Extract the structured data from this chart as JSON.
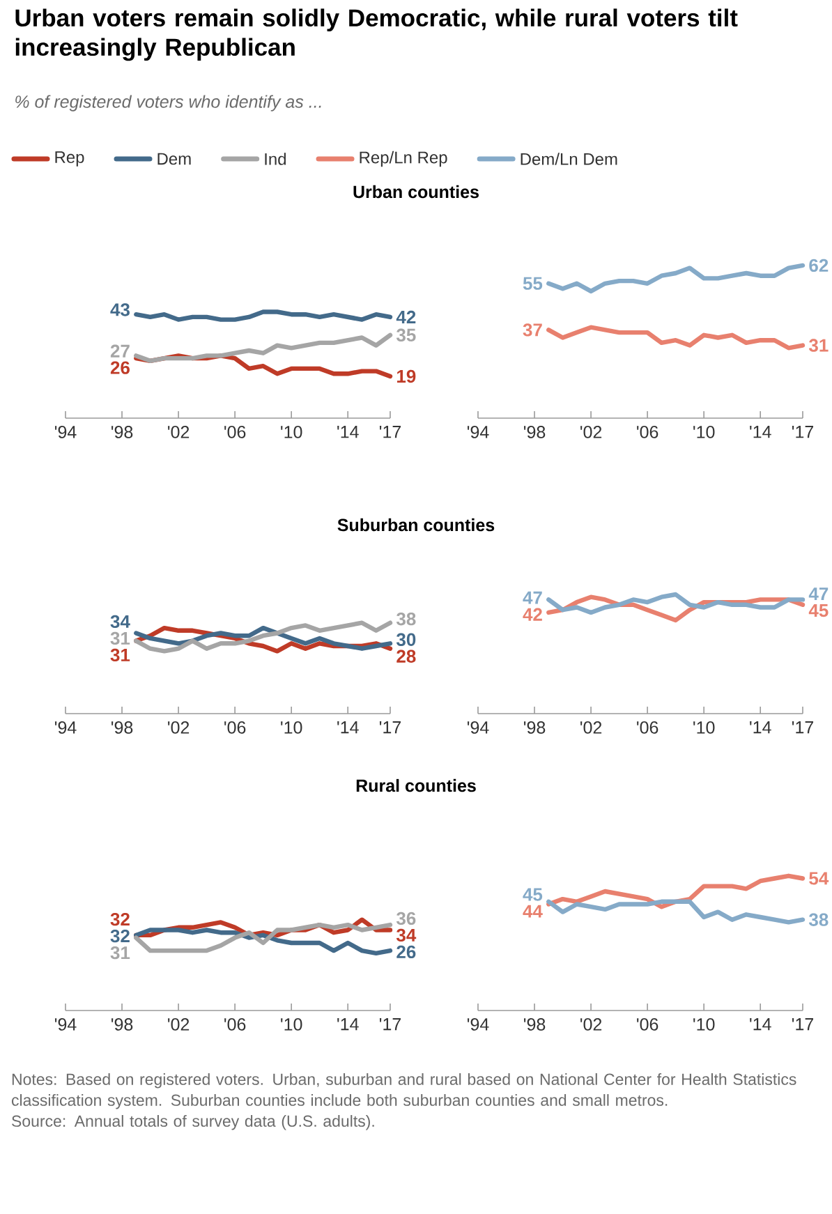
{
  "chart_data": [
    {
      "type": "other",
      "title": "Urban voters remain solidly Democratic, while rural voters tilt increasingly Republican",
      "subtitle": "% of registered voters who identify as ...",
      "annotations": [
        "Notes: Based on registered voters. Urban, suburban and rural based on National Center for Health Statistics classification system. Suburban counties include both suburban counties and small metros.",
        "Source: Annual totals of survey data (U.S. adults)."
      ]
    },
    {
      "type": "line",
      "title": "Urban counties",
      "legend": "top",
      "line_style": "solid",
      "tick_labels": "x",
      "x": [
        1999,
        2000,
        2001,
        2002,
        2003,
        2004,
        2005,
        2006,
        2007,
        2008,
        2009,
        2010,
        2011,
        2012,
        2013,
        2014,
        2015,
        2016,
        2017
      ],
      "xlim": [
        1994,
        2017
      ],
      "xticks": [
        {
          "value": 1994,
          "label": "'94"
        },
        {
          "value": 1998,
          "label": "'98"
        },
        {
          "value": 2002,
          "label": "'02"
        },
        {
          "value": 2006,
          "label": "'06"
        },
        {
          "value": 2010,
          "label": "'10"
        },
        {
          "value": 2014,
          "label": "'14"
        },
        {
          "value": 2017,
          "label": "'17"
        }
      ],
      "series": [
        {
          "name": "Rep",
          "color": "#bf3b27",
          "values": [
            26,
            25,
            26,
            27,
            26,
            26,
            27,
            26,
            22,
            23,
            20,
            22,
            22,
            22,
            20,
            20,
            21,
            21,
            19
          ],
          "value_labels": [
            "26",
            null,
            null,
            null,
            null,
            null,
            null,
            null,
            null,
            null,
            null,
            null,
            null,
            null,
            null,
            null,
            null,
            null,
            "19"
          ]
        },
        {
          "name": "Dem",
          "color": "#436a8a",
          "values": [
            43,
            42,
            43,
            41,
            42,
            42,
            41,
            41,
            42,
            44,
            44,
            43,
            43,
            42,
            43,
            42,
            41,
            43,
            42
          ],
          "value_labels": [
            "43",
            null,
            null,
            null,
            null,
            null,
            null,
            null,
            null,
            null,
            null,
            null,
            null,
            null,
            null,
            null,
            null,
            null,
            "42"
          ]
        },
        {
          "name": "Ind",
          "color": "#a5a5a5",
          "values": [
            27,
            25,
            26,
            26,
            26,
            27,
            27,
            28,
            29,
            28,
            31,
            30,
            31,
            32,
            32,
            33,
            34,
            31,
            35
          ],
          "value_labels": [
            "27",
            null,
            null,
            null,
            null,
            null,
            null,
            null,
            null,
            null,
            null,
            null,
            null,
            null,
            null,
            null,
            null,
            null,
            "35"
          ]
        }
      ]
    },
    {
      "type": "line",
      "legend": "top",
      "line_style": "solid",
      "tick_labels": "x",
      "x": [
        1999,
        2000,
        2001,
        2002,
        2003,
        2004,
        2005,
        2006,
        2007,
        2008,
        2009,
        2010,
        2011,
        2012,
        2013,
        2014,
        2015,
        2016,
        2017
      ],
      "xlim": [
        1994,
        2017
      ],
      "xticks": [
        {
          "value": 1994,
          "label": "'94"
        },
        {
          "value": 1998,
          "label": "'98"
        },
        {
          "value": 2002,
          "label": "'02"
        },
        {
          "value": 2006,
          "label": "'06"
        },
        {
          "value": 2010,
          "label": "'10"
        },
        {
          "value": 2014,
          "label": "'14"
        },
        {
          "value": 2017,
          "label": "'17"
        }
      ],
      "series": [
        {
          "name": "Rep/Ln Rep",
          "color": "#e8806e",
          "values": [
            37,
            34,
            36,
            38,
            37,
            36,
            36,
            36,
            32,
            33,
            31,
            35,
            34,
            35,
            32,
            33,
            33,
            30,
            31
          ],
          "value_labels": [
            "37",
            null,
            null,
            null,
            null,
            null,
            null,
            null,
            null,
            null,
            null,
            null,
            null,
            null,
            null,
            null,
            null,
            null,
            "31"
          ]
        },
        {
          "name": "Dem/Ln Dem",
          "color": "#85aac8",
          "values": [
            55,
            53,
            55,
            52,
            55,
            56,
            56,
            55,
            58,
            59,
            61,
            57,
            57,
            58,
            59,
            58,
            58,
            61,
            62
          ],
          "value_labels": [
            "55",
            null,
            null,
            null,
            null,
            null,
            null,
            null,
            null,
            null,
            null,
            null,
            null,
            null,
            null,
            null,
            null,
            null,
            "62"
          ]
        }
      ]
    },
    {
      "type": "line",
      "title": "Suburban counties",
      "line_style": "solid",
      "tick_labels": "x",
      "x": [
        1999,
        2000,
        2001,
        2002,
        2003,
        2004,
        2005,
        2006,
        2007,
        2008,
        2009,
        2010,
        2011,
        2012,
        2013,
        2014,
        2015,
        2016,
        2017
      ],
      "xlim": [
        1994,
        2017
      ],
      "xticks": [
        {
          "value": 1994,
          "label": "'94"
        },
        {
          "value": 1998,
          "label": "'98"
        },
        {
          "value": 2002,
          "label": "'02"
        },
        {
          "value": 2006,
          "label": "'06"
        },
        {
          "value": 2010,
          "label": "'10"
        },
        {
          "value": 2014,
          "label": "'14"
        },
        {
          "value": 2017,
          "label": "'17"
        }
      ],
      "series": [
        {
          "color": "#bf3b27",
          "values": [
            31,
            33,
            36,
            35,
            35,
            34,
            33,
            32,
            30,
            29,
            27,
            30,
            28,
            30,
            29,
            29,
            29,
            30,
            28
          ],
          "value_labels": [
            "31",
            null,
            null,
            null,
            null,
            null,
            null,
            null,
            null,
            null,
            null,
            null,
            null,
            null,
            null,
            null,
            null,
            null,
            "28"
          ]
        },
        {
          "color": "#436a8a",
          "values": [
            34,
            32,
            31,
            30,
            31,
            33,
            34,
            33,
            33,
            36,
            34,
            32,
            30,
            32,
            30,
            29,
            28,
            29,
            30
          ],
          "value_labels": [
            "34",
            null,
            null,
            null,
            null,
            null,
            null,
            null,
            null,
            null,
            null,
            null,
            null,
            null,
            null,
            null,
            null,
            null,
            "30"
          ]
        },
        {
          "color": "#a5a5a5",
          "values": [
            31,
            28,
            27,
            28,
            31,
            28,
            30,
            30,
            31,
            33,
            34,
            36,
            37,
            35,
            36,
            37,
            38,
            35,
            38
          ],
          "value_labels": [
            "31",
            null,
            null,
            null,
            null,
            null,
            null,
            null,
            null,
            null,
            null,
            null,
            null,
            null,
            null,
            null,
            null,
            null,
            "38"
          ]
        }
      ]
    },
    {
      "type": "line",
      "line_style": "solid",
      "tick_labels": "x",
      "x": [
        1999,
        2000,
        2001,
        2002,
        2003,
        2004,
        2005,
        2006,
        2007,
        2008,
        2009,
        2010,
        2011,
        2012,
        2013,
        2014,
        2015,
        2016,
        2017
      ],
      "xlim": [
        1994,
        2017
      ],
      "xticks": [
        {
          "value": 1994,
          "label": "'94"
        },
        {
          "value": 1998,
          "label": "'98"
        },
        {
          "value": 2002,
          "label": "'02"
        },
        {
          "value": 2006,
          "label": "'06"
        },
        {
          "value": 2010,
          "label": "'10"
        },
        {
          "value": 2014,
          "label": "'14"
        },
        {
          "value": 2017,
          "label": "'17"
        }
      ],
      "series": [
        {
          "color": "#e8806e",
          "values": [
            42,
            43,
            46,
            48,
            47,
            45,
            45,
            43,
            41,
            39,
            43,
            46,
            46,
            46,
            46,
            47,
            47,
            47,
            45
          ],
          "value_labels": [
            "42",
            null,
            null,
            null,
            null,
            null,
            null,
            null,
            null,
            null,
            null,
            null,
            null,
            null,
            null,
            null,
            null,
            null,
            "45"
          ]
        },
        {
          "color": "#85aac8",
          "values": [
            47,
            43,
            44,
            42,
            44,
            45,
            47,
            46,
            48,
            49,
            45,
            44,
            46,
            45,
            45,
            44,
            44,
            47,
            47
          ],
          "value_labels": [
            "47",
            null,
            null,
            null,
            null,
            null,
            null,
            null,
            null,
            null,
            null,
            null,
            null,
            null,
            null,
            null,
            null,
            null,
            "47"
          ]
        }
      ]
    },
    {
      "type": "line",
      "title": "Rural counties",
      "line_style": "solid",
      "tick_labels": "x",
      "x": [
        1999,
        2000,
        2001,
        2002,
        2003,
        2004,
        2005,
        2006,
        2007,
        2008,
        2009,
        2010,
        2011,
        2012,
        2013,
        2014,
        2015,
        2016,
        2017
      ],
      "xlim": [
        1994,
        2017
      ],
      "xticks": [
        {
          "value": 1994,
          "label": "'94"
        },
        {
          "value": 1998,
          "label": "'98"
        },
        {
          "value": 2002,
          "label": "'02"
        },
        {
          "value": 2006,
          "label": "'06"
        },
        {
          "value": 2010,
          "label": "'10"
        },
        {
          "value": 2014,
          "label": "'14"
        },
        {
          "value": 2017,
          "label": "'17"
        }
      ],
      "series": [
        {
          "color": "#bf3b27",
          "values": [
            32,
            32,
            34,
            35,
            35,
            36,
            37,
            35,
            32,
            33,
            32,
            34,
            34,
            36,
            33,
            34,
            38,
            34,
            34
          ],
          "value_labels": [
            "32",
            null,
            null,
            null,
            null,
            null,
            null,
            null,
            null,
            null,
            null,
            null,
            null,
            null,
            null,
            null,
            null,
            null,
            "34"
          ]
        },
        {
          "color": "#436a8a",
          "values": [
            32,
            34,
            34,
            34,
            33,
            34,
            33,
            33,
            31,
            32,
            30,
            29,
            29,
            29,
            26,
            29,
            26,
            25,
            26
          ],
          "value_labels": [
            "32",
            null,
            null,
            null,
            null,
            null,
            null,
            null,
            null,
            null,
            null,
            null,
            null,
            null,
            null,
            null,
            null,
            null,
            "26"
          ]
        },
        {
          "color": "#a5a5a5",
          "values": [
            31,
            26,
            26,
            26,
            26,
            26,
            28,
            31,
            33,
            29,
            34,
            34,
            35,
            36,
            35,
            36,
            34,
            35,
            36
          ],
          "value_labels": [
            "31",
            null,
            null,
            null,
            null,
            null,
            null,
            null,
            null,
            null,
            null,
            null,
            null,
            null,
            null,
            null,
            null,
            null,
            "36"
          ]
        }
      ]
    },
    {
      "type": "line",
      "line_style": "solid",
      "tick_labels": "x",
      "x": [
        1999,
        2000,
        2001,
        2002,
        2003,
        2004,
        2005,
        2006,
        2007,
        2008,
        2009,
        2010,
        2011,
        2012,
        2013,
        2014,
        2015,
        2016,
        2017
      ],
      "xlim": [
        1994,
        2017
      ],
      "xticks": [
        {
          "value": 1994,
          "label": "'94"
        },
        {
          "value": 1998,
          "label": "'98"
        },
        {
          "value": 2002,
          "label": "'02"
        },
        {
          "value": 2006,
          "label": "'06"
        },
        {
          "value": 2010,
          "label": "'10"
        },
        {
          "value": 2014,
          "label": "'14"
        },
        {
          "value": 2017,
          "label": "'17"
        }
      ],
      "series": [
        {
          "color": "#e8806e",
          "values": [
            44,
            46,
            45,
            47,
            49,
            48,
            47,
            46,
            43,
            45,
            46,
            51,
            51,
            51,
            50,
            53,
            54,
            55,
            54
          ],
          "value_labels": [
            "44",
            null,
            null,
            null,
            null,
            null,
            null,
            null,
            null,
            null,
            null,
            null,
            null,
            null,
            null,
            null,
            null,
            null,
            "54"
          ]
        },
        {
          "color": "#85aac8",
          "values": [
            45,
            41,
            44,
            43,
            42,
            44,
            44,
            44,
            45,
            45,
            45,
            39,
            41,
            38,
            40,
            39,
            38,
            37,
            38
          ],
          "value_labels": [
            "45",
            null,
            null,
            null,
            null,
            null,
            null,
            null,
            null,
            null,
            null,
            null,
            null,
            null,
            null,
            null,
            null,
            null,
            "38"
          ]
        }
      ]
    }
  ]
}
